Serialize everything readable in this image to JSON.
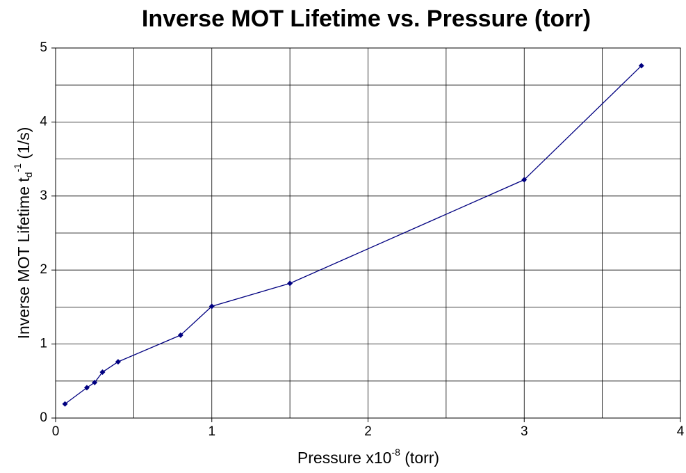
{
  "chart_data": {
    "type": "line",
    "title": "Inverse MOT Lifetime vs. Pressure (torr)",
    "xlabel": {
      "text": "Pressure x10",
      "sup": "-8",
      "after": " (torr)"
    },
    "ylabel": {
      "text": "Inverse MOT Lifetime t",
      "sub": "d",
      "sup": "-1",
      "after": " (1/s)"
    },
    "x": [
      0.06,
      0.2,
      0.25,
      0.3,
      0.4,
      0.8,
      1.0,
      1.5,
      3.0,
      3.75
    ],
    "values": [
      0.19,
      0.41,
      0.48,
      0.62,
      0.76,
      1.12,
      1.51,
      1.82,
      3.22,
      4.76
    ],
    "color": "#000080",
    "xlim": [
      0,
      4
    ],
    "xticks": [
      0,
      1,
      2,
      3,
      4
    ],
    "x_minor_grid": [
      0.5,
      1.5,
      2.5,
      3.5
    ],
    "ylim": [
      0,
      5
    ],
    "yticks": [
      0,
      1,
      2,
      3,
      4,
      5
    ],
    "y_minor_grid": [
      0.5,
      1.5,
      2.5,
      3.5,
      4.5
    ],
    "grid": true
  }
}
